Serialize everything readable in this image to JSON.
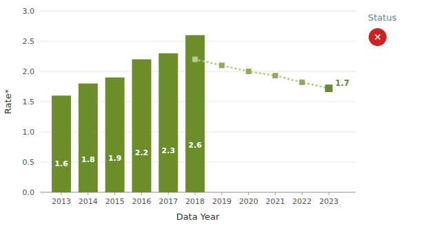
{
  "chart_data": {
    "type": "bar",
    "xlabel": "Data Year",
    "ylabel": "Rate*",
    "xlim": [
      2012.2,
      2024.0
    ],
    "xticks": [
      2013,
      2014,
      2015,
      2016,
      2017,
      2018,
      2019,
      2020,
      2021,
      2022,
      2023
    ],
    "ylim": [
      0,
      3.0
    ],
    "yticks": [
      {
        "value": 0.0,
        "label": "0.0"
      },
      0.5,
      {
        "value": 1.0,
        "label": "1.0"
      },
      1.5,
      {
        "value": 2.0,
        "label": "2.0"
      },
      2.5,
      {
        "value": 3.0,
        "label": "3.0"
      }
    ],
    "grid": true,
    "series": [
      {
        "type": "bar",
        "color": "#6b8e2a",
        "data_labels": true,
        "x": [
          2013,
          2014,
          2015,
          2016,
          2017,
          2018
        ],
        "values": [
          1.6,
          1.8,
          1.9,
          2.2,
          2.3,
          2.6
        ]
      },
      {
        "type": "line",
        "color": "#b0c878",
        "line_style": "dotted",
        "marker": "square",
        "x": [
          2018,
          2019,
          2020,
          2021,
          2022,
          2023
        ],
        "values": [
          2.2,
          2.1,
          2.0,
          1.93,
          1.82,
          1.72
        ],
        "colors": [
          "#b8cc90",
          "#92aa60",
          "#92aa60",
          "#92aa60",
          "#92aa60",
          "#6a8a30"
        ]
      }
    ],
    "annotations": [
      {
        "text": "1.7",
        "x": 2023,
        "y": 1.72,
        "color": "#6a8a30"
      },
      {
        "text": "Status",
        "color": "#5a8a9a"
      },
      {
        "text": "✕",
        "color": "#cc2222",
        "marker": "circle"
      }
    ]
  }
}
